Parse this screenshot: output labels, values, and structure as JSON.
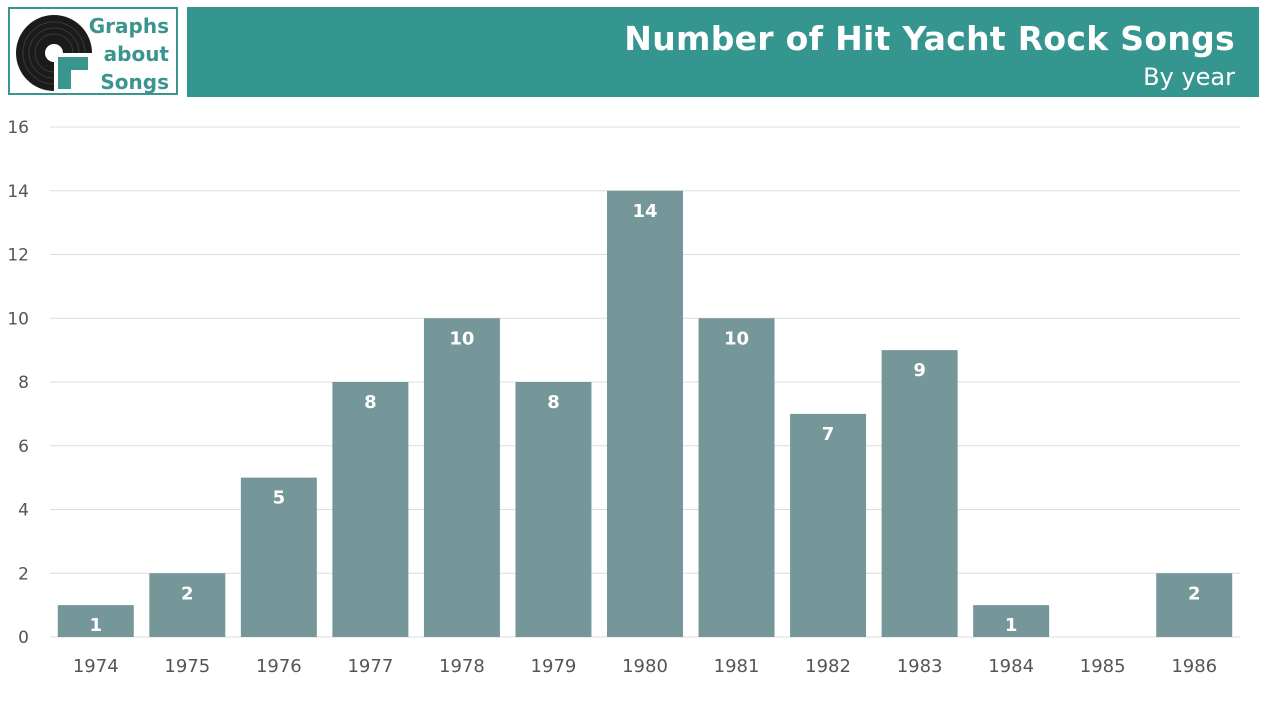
{
  "header": {
    "logo_lines": [
      "Graphs",
      "about",
      "Songs"
    ],
    "title": "Number of Hit Yacht Rock Songs",
    "subtitle": "By year"
  },
  "colors": {
    "brand": "#35958f",
    "bar": "#759799",
    "bar_label": "#ffffff",
    "grid": "#dcdcdc",
    "tick": "#555555"
  },
  "chart_data": {
    "type": "bar",
    "title": "Number of Hit Yacht Rock Songs",
    "subtitle": "By year",
    "xlabel": "",
    "ylabel": "",
    "categories": [
      "1974",
      "1975",
      "1976",
      "1977",
      "1978",
      "1979",
      "1980",
      "1981",
      "1982",
      "1983",
      "1984",
      "1985",
      "1986"
    ],
    "values": [
      1,
      2,
      5,
      8,
      10,
      8,
      14,
      10,
      7,
      9,
      1,
      0,
      2
    ],
    "ylim": [
      0,
      16
    ],
    "yticks": [
      0,
      2,
      4,
      6,
      8,
      10,
      12,
      14,
      16
    ],
    "grid": true,
    "legend": "none",
    "data_labels": true
  }
}
